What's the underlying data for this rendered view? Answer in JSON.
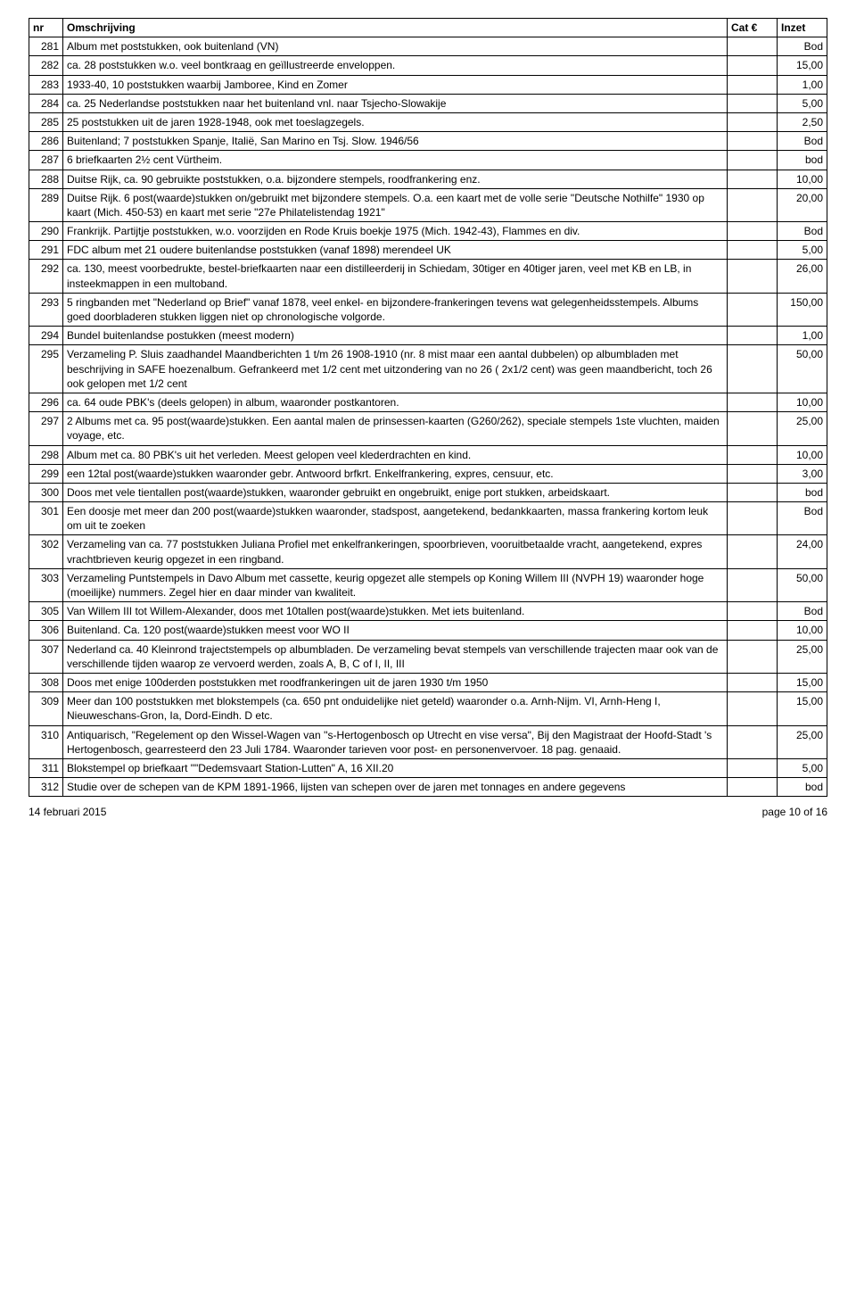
{
  "table": {
    "headers": {
      "nr": "nr",
      "desc": "Omschrijving",
      "cat": "Cat €",
      "inzet": "Inzet"
    },
    "rows": [
      {
        "nr": "281",
        "desc": "Album met poststukken, ook buitenland (VN)",
        "cat": "",
        "inzet": "Bod"
      },
      {
        "nr": "282",
        "desc": "ca. 28 poststukken w.o. veel bontkraag en geïllustreerde enveloppen.",
        "cat": "",
        "inzet": "15,00"
      },
      {
        "nr": "283",
        "desc": "1933-40, 10 poststukken waarbij Jamboree, Kind en Zomer",
        "cat": "",
        "inzet": "1,00"
      },
      {
        "nr": "284",
        "desc": "ca. 25 Nederlandse poststukken naar het buitenland vnl. naar Tsjecho-Slowakije",
        "cat": "",
        "inzet": "5,00"
      },
      {
        "nr": "285",
        "desc": "25 poststukken uit de jaren 1928-1948, ook met toeslagzegels.",
        "cat": "",
        "inzet": "2,50"
      },
      {
        "nr": "286",
        "desc": "Buitenland; 7 poststukken Spanje, Italië, San Marino en Tsj. Slow. 1946/56",
        "cat": "",
        "inzet": "Bod"
      },
      {
        "nr": "287",
        "desc": "6 briefkaarten 2½ cent Vürtheim.",
        "cat": "",
        "inzet": "bod"
      },
      {
        "nr": "288",
        "desc": "Duitse Rijk, ca. 90 gebruikte poststukken, o.a. bijzondere stempels, roodfrankering enz.",
        "cat": "",
        "inzet": "10,00"
      },
      {
        "nr": "289",
        "desc": "Duitse Rijk. 6 post(waarde)stukken on/gebruikt met bijzondere stempels. O.a. een kaart met de volle serie \"Deutsche Nothilfe\" 1930 op kaart (Mich. 450-53) en kaart met serie \"27e Philatelistendag 1921\"",
        "cat": "",
        "inzet": "20,00"
      },
      {
        "nr": "290",
        "desc": "Frankrijk. Partijtje poststukken, w.o. voorzijden en Rode Kruis boekje 1975 (Mich. 1942-43), Flammes en div.",
        "cat": "",
        "inzet": "Bod"
      },
      {
        "nr": "291",
        "desc": "FDC album met 21 oudere buitenlandse poststukken (vanaf 1898) merendeel UK",
        "cat": "",
        "inzet": "5,00"
      },
      {
        "nr": "292",
        "desc": "ca. 130, meest voorbedrukte, bestel-briefkaarten naar een distilleerderij in Schiedam, 30tiger en 40tiger jaren, veel met KB en LB, in insteekmappen in een multoband.",
        "cat": "",
        "inzet": "26,00"
      },
      {
        "nr": "293",
        "desc": "5 ringbanden met \"Nederland op Brief\" vanaf 1878, veel enkel- en bijzondere-frankeringen tevens wat gelegenheidsstempels. Albums goed doorbladeren stukken liggen niet op chronologische volgorde.",
        "cat": "",
        "inzet": "150,00"
      },
      {
        "nr": "294",
        "desc": "Bundel buitenlandse postukken (meest modern)",
        "cat": "",
        "inzet": "1,00"
      },
      {
        "nr": "295",
        "desc": "Verzameling P. Sluis zaadhandel Maandberichten 1 t/m 26 1908-1910 (nr. 8 mist maar een aantal dubbelen) op albumbladen met beschrijving in SAFE hoezenalbum. Gefrankeerd met 1/2 cent met uitzondering van no 26 ( 2x1/2 cent) was geen maandbericht, toch 26 ook gelopen met 1/2 cent",
        "cat": "",
        "inzet": "50,00"
      },
      {
        "nr": "296",
        "desc": "ca. 64 oude PBK's (deels gelopen) in album, waaronder postkantoren.",
        "cat": "",
        "inzet": "10,00"
      },
      {
        "nr": "297",
        "desc": "2 Albums met ca. 95 post(waarde)stukken. Een aantal malen de prinsessen-kaarten (G260/262), speciale stempels 1ste vluchten, maiden voyage, etc.",
        "cat": "",
        "inzet": "25,00"
      },
      {
        "nr": "298",
        "desc": "Album met ca. 80 PBK's uit het verleden. Meest gelopen veel klederdrachten en kind.",
        "cat": "",
        "inzet": "10,00"
      },
      {
        "nr": "299",
        "desc": "een 12tal post(waarde)stukken waaronder gebr. Antwoord brfkrt. Enkelfrankering, expres, censuur, etc.",
        "cat": "",
        "inzet": "3,00"
      },
      {
        "nr": "300",
        "desc": "Doos met vele tientallen post(waarde)stukken, waaronder gebruikt en ongebruikt, enige port stukken, arbeidskaart.",
        "cat": "",
        "inzet": "bod"
      },
      {
        "nr": "301",
        "desc": "Een doosje met meer dan 200 post(waarde)stukken waaronder, stadspost, aangetekend, bedankkaarten, massa frankering kortom leuk om uit te zoeken",
        "cat": "",
        "inzet": "Bod"
      },
      {
        "nr": "302",
        "desc": "Verzameling van ca. 77 poststukken Juliana Profiel met enkelfrankeringen, spoorbrieven, vooruitbetaalde vracht, aangetekend, expres vrachtbrieven keurig opgezet in een ringband.",
        "cat": "",
        "inzet": "24,00"
      },
      {
        "nr": "303",
        "desc": "Verzameling Puntstempels in Davo Album met cassette, keurig opgezet alle stempels op Koning Willem III (NVPH 19) waaronder hoge (moeilijke) nummers. Zegel hier en daar minder van kwaliteit.",
        "cat": "",
        "inzet": "50,00"
      },
      {
        "nr": "305",
        "desc": "Van Willem III tot Willem-Alexander, doos met 10tallen post(waarde)stukken. Met iets buitenland.",
        "cat": "",
        "inzet": "Bod"
      },
      {
        "nr": "306",
        "desc": "Buitenland. Ca. 120 post(waarde)stukken meest voor WO II",
        "cat": "",
        "inzet": "10,00"
      },
      {
        "nr": "307",
        "desc": "Nederland ca. 40 Kleinrond trajectstempels op albumbladen. De verzameling bevat stempels van verschillende trajecten maar ook van de verschillende tijden waarop ze vervoerd werden, zoals A, B, C of I, II, III",
        "cat": "",
        "inzet": "25,00"
      },
      {
        "nr": "308",
        "desc": "Doos met enige 100derden poststukken met roodfrankeringen uit de jaren 1930 t/m 1950",
        "cat": "",
        "inzet": "15,00"
      },
      {
        "nr": "309",
        "desc": "Meer dan 100 poststukken met blokstempels (ca. 650 pnt onduidelijke niet geteld) waaronder o.a. Arnh-Nijm. VI, Arnh-Heng I, Nieuweschans-Gron, Ia, Dord-Eindh. D etc.",
        "cat": "",
        "inzet": "15,00"
      },
      {
        "nr": "310",
        "desc": "Antiquarisch, \"Regelement op den Wissel-Wagen van ''s-Hertogenbosch op Utrecht en vise versa\", Bij den Magistraat der Hoofd-Stadt 's Hertogenbosch, gearresteerd den 23 Juli 1784. Waaronder tarieven voor post- en personenvervoer. 18 pag. genaaid.",
        "cat": "",
        "inzet": "25,00"
      },
      {
        "nr": "311",
        "desc": "Blokstempel op briefkaart \"\"Dedemsvaart Station-Lutten\" A, 16 XII.20",
        "cat": "",
        "inzet": "5,00"
      },
      {
        "nr": "312",
        "desc": "Studie over de schepen van de KPM 1891-1966, lijsten van schepen over de jaren met tonnages en andere gegevens",
        "cat": "",
        "inzet": "bod"
      }
    ]
  },
  "footer": {
    "left": "14 februari 2015",
    "right": "page 10 of 16"
  }
}
